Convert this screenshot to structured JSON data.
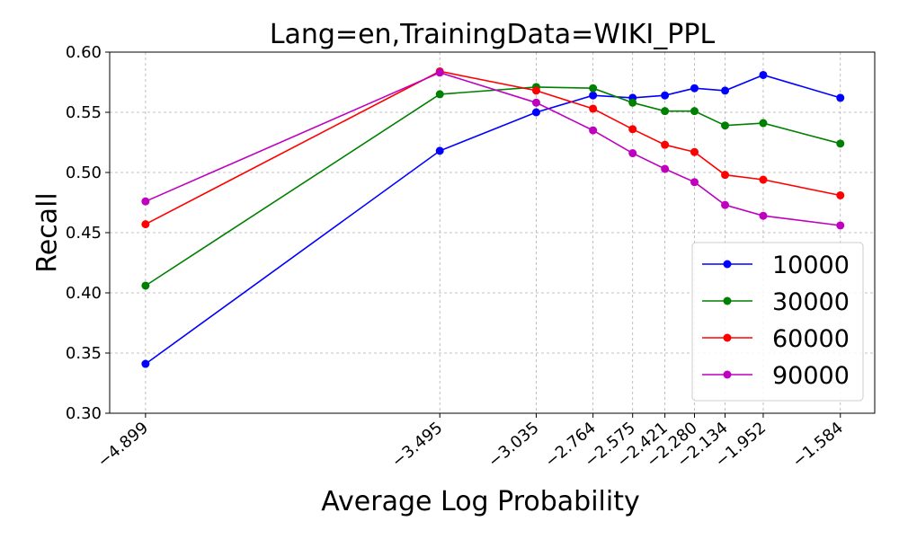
{
  "chart_data": {
    "type": "line",
    "title": "Lang=en,TrainingData=WIKI_PPL",
    "xlabel": "Average Log Probability",
    "ylabel": "Recall",
    "x": [
      -4.899,
      -3.495,
      -3.035,
      -2.764,
      -2.575,
      -2.421,
      -2.28,
      -2.134,
      -1.952,
      -1.584
    ],
    "x_tick_labels": [
      "−4.899",
      "−3.495",
      "−3.035",
      "−2.764",
      "−2.575",
      "−2.421",
      "−2.280",
      "−2.134",
      "−1.952",
      "−1.584"
    ],
    "xlim": [
      -5.07,
      -1.42
    ],
    "ylim": [
      0.3,
      0.6
    ],
    "y_ticks": [
      0.3,
      0.35,
      0.4,
      0.45,
      0.5,
      0.55,
      0.6
    ],
    "y_tick_labels": [
      "0.30",
      "0.35",
      "0.40",
      "0.45",
      "0.50",
      "0.55",
      "0.60"
    ],
    "grid": true,
    "legend_position": "lower-right",
    "series": [
      {
        "name": "10000",
        "color": "#0000ff",
        "values": [
          0.341,
          0.518,
          0.55,
          0.564,
          0.562,
          0.564,
          0.57,
          0.568,
          0.581,
          0.562
        ]
      },
      {
        "name": "30000",
        "color": "#008000",
        "values": [
          0.406,
          0.565,
          0.571,
          0.57,
          0.558,
          0.551,
          0.551,
          0.539,
          0.541,
          0.524
        ]
      },
      {
        "name": "60000",
        "color": "#ff0000",
        "values": [
          0.457,
          0.584,
          0.568,
          0.553,
          0.536,
          0.523,
          0.517,
          0.498,
          0.494,
          0.481
        ]
      },
      {
        "name": "90000",
        "color": "#bf00bf",
        "values": [
          0.476,
          0.583,
          0.558,
          0.535,
          0.516,
          0.503,
          0.492,
          0.473,
          0.464,
          0.456
        ]
      }
    ]
  }
}
